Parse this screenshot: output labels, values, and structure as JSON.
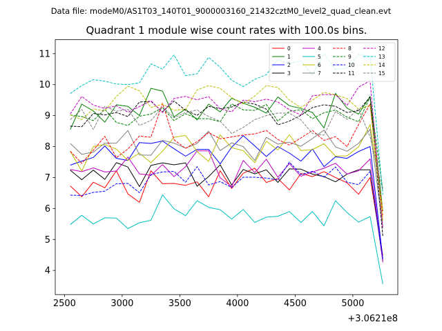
{
  "header": {
    "filename_label": "Data file: modeM0/AS1T03_140T01_9000003160_21432cztM0_level2_quad_clean.evt"
  },
  "chart_data": {
    "type": "line",
    "title": "Quadrant 1 module wise count rates with 100.0s bins.",
    "xlabel": "",
    "ylabel": "",
    "x_offset_label": "+3.0621e8",
    "xlim": [
      2420,
      5390
    ],
    "ylim": [
      3.22,
      11.45
    ],
    "x_ticks": [
      2500,
      3000,
      3500,
      4000,
      4500,
      5000
    ],
    "y_ticks": [
      4,
      5,
      6,
      7,
      8,
      9,
      10,
      11
    ],
    "x": [
      2550,
      2650,
      2750,
      2850,
      2950,
      3050,
      3150,
      3250,
      3350,
      3450,
      3550,
      3650,
      3750,
      3850,
      3950,
      4050,
      4150,
      4250,
      4350,
      4450,
      4550,
      4650,
      4750,
      4850,
      4950,
      5050,
      5150,
      5260
    ],
    "legend": {
      "location": "top-right",
      "columns": 4
    },
    "series": [
      {
        "name": "0",
        "color": "#ff0000",
        "style": "solid",
        "values": [
          6.73,
          6.38,
          6.85,
          6.67,
          7.22,
          6.47,
          6.2,
          7.22,
          6.8,
          6.81,
          6.75,
          6.86,
          6.38,
          7.22,
          6.65,
          7.14,
          7.3,
          6.84,
          6.97,
          6.6,
          7.13,
          7.03,
          7.19,
          7.0,
          6.83,
          6.46,
          7.0,
          4.48
        ]
      },
      {
        "name": "1",
        "color": "#008000",
        "style": "solid",
        "values": [
          8.55,
          9.37,
          9.15,
          8.79,
          9.35,
          9.3,
          9.0,
          9.88,
          9.79,
          8.96,
          9.21,
          8.86,
          9.37,
          9.12,
          9.56,
          9.4,
          9.27,
          9.08,
          9.6,
          9.32,
          9.23,
          9.1,
          8.6,
          9.72,
          9.24,
          9.05,
          9.62,
          5.92
        ]
      },
      {
        "name": "2",
        "color": "#0000ff",
        "style": "solid",
        "values": [
          7.4,
          7.53,
          7.65,
          8.02,
          7.62,
          7.55,
          8.13,
          8.1,
          8.18,
          7.93,
          7.69,
          7.91,
          7.91,
          7.44,
          7.98,
          8.35,
          8.02,
          7.68,
          8.0,
          7.79,
          7.53,
          7.92,
          7.35,
          7.67,
          7.62,
          7.84,
          8.0,
          4.37
        ]
      },
      {
        "name": "3",
        "color": "#000000",
        "style": "solid",
        "values": [
          7.24,
          6.93,
          7.24,
          6.94,
          7.48,
          7.34,
          6.71,
          7.39,
          7.47,
          7.41,
          7.47,
          6.72,
          7.03,
          7.41,
          6.76,
          7.26,
          7.12,
          7.25,
          6.84,
          7.28,
          7.27,
          7.11,
          7.03,
          6.86,
          7.11,
          7.25,
          7.25,
          4.3
        ]
      },
      {
        "name": "4",
        "color": "#bf00bf",
        "style": "solid",
        "values": [
          7.26,
          7.19,
          7.31,
          7.18,
          7.21,
          7.66,
          7.12,
          7.07,
          7.42,
          7.03,
          7.35,
          7.86,
          7.86,
          6.99,
          6.71,
          7.55,
          7.16,
          7.59,
          7.01,
          7.45,
          7.04,
          7.18,
          7.3,
          7.46,
          7.11,
          7.22,
          7.6,
          4.26
        ]
      },
      {
        "name": "5",
        "color": "#00bfbf",
        "style": "solid",
        "values": [
          5.48,
          5.78,
          5.5,
          5.7,
          5.69,
          5.35,
          5.54,
          5.62,
          6.44,
          5.99,
          5.77,
          6.25,
          6.04,
          5.96,
          5.66,
          5.97,
          5.55,
          5.72,
          5.75,
          5.9,
          5.55,
          5.9,
          5.44,
          6.25,
          5.87,
          5.56,
          5.74,
          3.56
        ]
      },
      {
        "name": "6",
        "color": "#bfbf00",
        "style": "solid",
        "values": [
          7.85,
          7.21,
          8.0,
          8.06,
          7.92,
          7.55,
          7.79,
          7.48,
          7.85,
          8.3,
          8.36,
          7.84,
          7.52,
          8.38,
          7.96,
          7.87,
          7.48,
          8.17,
          7.89,
          8.38,
          7.87,
          7.9,
          8.09,
          7.69,
          7.7,
          7.99,
          8.71,
          5.94
        ]
      },
      {
        "name": "7",
        "color": "#808080",
        "style": "solid",
        "values": [
          8.1,
          7.75,
          7.82,
          8.11,
          8.11,
          8.52,
          7.73,
          7.72,
          8.2,
          8.11,
          7.95,
          8.1,
          8.5,
          7.87,
          8.12,
          8.0,
          7.55,
          8.3,
          8.08,
          8.14,
          8.01,
          8.26,
          8.53,
          7.99,
          7.85,
          8.1,
          8.56,
          5.37
        ]
      },
      {
        "name": "8",
        "color": "#ff0000",
        "style": "dashed",
        "values": [
          7.85,
          7.46,
          7.88,
          8.33,
          7.64,
          7.92,
          8.34,
          8.3,
          9.4,
          8.22,
          7.94,
          8.16,
          8.45,
          8.25,
          8.31,
          8.37,
          8.41,
          8.52,
          8.23,
          8.05,
          8.28,
          8.52,
          8.2,
          8.32,
          8.0,
          8.71,
          9.38,
          5.72
        ]
      },
      {
        "name": "9",
        "color": "#008000",
        "style": "dashed",
        "values": [
          9.02,
          8.97,
          8.84,
          9.2,
          8.78,
          8.68,
          8.98,
          9.05,
          9.26,
          8.84,
          9.06,
          8.9,
          8.9,
          8.8,
          9.38,
          9.18,
          9.17,
          9.36,
          8.82,
          9.14,
          9.19,
          8.9,
          9.09,
          9.18,
          8.95,
          8.8,
          9.6,
          6.6
        ]
      },
      {
        "name": "10",
        "color": "#0000ff",
        "style": "dashed",
        "values": [
          6.43,
          6.42,
          6.52,
          6.56,
          6.8,
          6.81,
          6.51,
          7.1,
          7.18,
          7.2,
          6.85,
          7.35,
          6.76,
          6.87,
          6.68,
          7.01,
          7.01,
          6.98,
          6.92,
          7.5,
          7.1,
          7.2,
          7.01,
          7.34,
          6.85,
          6.77,
          7.2,
          4.37
        ]
      },
      {
        "name": "11",
        "color": "#000000",
        "style": "dashed",
        "values": [
          8.66,
          8.64,
          9.07,
          9.02,
          9.1,
          8.97,
          9.44,
          9.46,
          9.12,
          9.47,
          9.17,
          9.01,
          9.3,
          9.22,
          9.28,
          9.44,
          9.37,
          9.21,
          8.7,
          8.82,
          9.01,
          9.26,
          9.35,
          9.3,
          9.1,
          9.16,
          9.6,
          5.1
        ]
      },
      {
        "name": "12",
        "color": "#bf00bf",
        "style": "dashed",
        "values": [
          9.05,
          9.62,
          9.34,
          9.23,
          9.32,
          9.11,
          9.29,
          9.48,
          9.1,
          9.55,
          9.62,
          9.51,
          9.61,
          9.22,
          9.12,
          9.5,
          9.45,
          9.53,
          9.44,
          9.19,
          9.02,
          9.64,
          9.68,
          9.67,
          9.33,
          9.92,
          10.12,
          5.37
        ]
      },
      {
        "name": "13",
        "color": "#00bfbf",
        "style": "dashed",
        "values": [
          9.71,
          9.97,
          10.16,
          10.11,
          10.02,
          10.0,
          10.06,
          10.67,
          10.5,
          10.96,
          10.29,
          10.35,
          10.88,
          10.56,
          10.14,
          9.94,
          10.17,
          10.32,
          10.81,
          10.67,
          10.77,
          10.31,
          11.0,
          10.49,
          10.54,
          10.97,
          10.92,
          6.44
        ]
      },
      {
        "name": "14",
        "color": "#bfbf00",
        "style": "dashed",
        "values": [
          9.02,
          8.87,
          9.21,
          9.15,
          9.62,
          9.95,
          9.8,
          9.26,
          9.37,
          9.17,
          9.2,
          9.83,
          9.97,
          9.88,
          9.58,
          9.38,
          9.63,
          9.97,
          9.91,
          9.5,
          9.26,
          9.5,
          9.75,
          9.67,
          9.55,
          9.21,
          9.33,
          5.6
        ]
      },
      {
        "name": "15",
        "color": "#808080",
        "style": "dashed",
        "values": [
          8.87,
          9.2,
          8.55,
          9.3,
          9.14,
          9.2,
          8.68,
          8.84,
          9.28,
          8.93,
          9.1,
          9.18,
          8.97,
          8.82,
          8.42,
          8.62,
          8.87,
          9.0,
          9.08,
          9.08,
          8.86,
          8.42,
          8.37,
          9.13,
          8.88,
          9.22,
          8.31,
          6.57
        ]
      }
    ]
  }
}
